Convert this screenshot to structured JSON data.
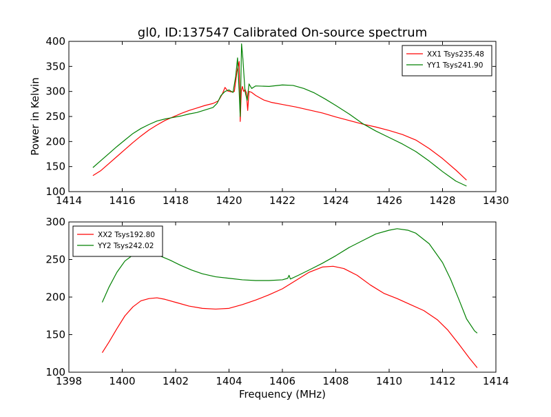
{
  "colors": {
    "red": "#ff0000",
    "green": "#008000",
    "axis": "#000000",
    "background": "#ffffff"
  },
  "chart_data": [
    {
      "type": "line",
      "title": "gl0, ID:137547 Calibrated On-source spectrum",
      "xlabel": "",
      "ylabel": "Power in Kelvin",
      "xlim": [
        1414,
        1430
      ],
      "ylim": [
        100,
        400
      ],
      "xticks": [
        1414,
        1416,
        1418,
        1420,
        1422,
        1424,
        1426,
        1428,
        1430
      ],
      "yticks": [
        100,
        150,
        200,
        250,
        300,
        350,
        400
      ],
      "grid": false,
      "legend_position": "upper right",
      "series": [
        {
          "name": "XX1 Tsys235.48",
          "color": "#ff0000",
          "points": [
            [
              1414.9,
              132
            ],
            [
              1415.2,
              142
            ],
            [
              1415.5,
              156
            ],
            [
              1415.8,
              170
            ],
            [
              1416.1,
              184
            ],
            [
              1416.4,
              198
            ],
            [
              1416.7,
              211
            ],
            [
              1417.0,
              223
            ],
            [
              1417.3,
              233
            ],
            [
              1417.6,
              242
            ],
            [
              1417.9,
              249
            ],
            [
              1418.2,
              256
            ],
            [
              1418.5,
              262
            ],
            [
              1418.8,
              267
            ],
            [
              1419.1,
              272
            ],
            [
              1419.4,
              276
            ],
            [
              1419.6,
              281
            ],
            [
              1419.75,
              295
            ],
            [
              1419.85,
              308
            ],
            [
              1419.95,
              301
            ],
            [
              1420.1,
              299
            ],
            [
              1420.2,
              300
            ],
            [
              1420.3,
              340
            ],
            [
              1420.38,
              360
            ],
            [
              1420.42,
              240
            ],
            [
              1420.46,
              300
            ],
            [
              1420.5,
              310
            ],
            [
              1420.55,
              300
            ],
            [
              1420.6,
              304
            ],
            [
              1420.65,
              297
            ],
            [
              1420.7,
              262
            ],
            [
              1420.75,
              300
            ],
            [
              1420.85,
              298
            ],
            [
              1421.0,
              292
            ],
            [
              1421.3,
              283
            ],
            [
              1421.6,
              278
            ],
            [
              1422.0,
              274
            ],
            [
              1422.5,
              269
            ],
            [
              1423.0,
              263
            ],
            [
              1423.5,
              257
            ],
            [
              1424.0,
              249
            ],
            [
              1424.5,
              242
            ],
            [
              1425.0,
              235
            ],
            [
              1425.5,
              229
            ],
            [
              1426.0,
              222
            ],
            [
              1426.5,
              214
            ],
            [
              1427.0,
              203
            ],
            [
              1427.5,
              186
            ],
            [
              1428.0,
              166
            ],
            [
              1428.5,
              143
            ],
            [
              1428.9,
              123
            ]
          ]
        },
        {
          "name": "YY1 Tsys241.90",
          "color": "#008000",
          "points": [
            [
              1414.9,
              148
            ],
            [
              1415.2,
              162
            ],
            [
              1415.5,
              176
            ],
            [
              1415.8,
              190
            ],
            [
              1416.1,
              203
            ],
            [
              1416.4,
              216
            ],
            [
              1416.7,
              226
            ],
            [
              1417.0,
              234
            ],
            [
              1417.3,
              241
            ],
            [
              1417.6,
              245
            ],
            [
              1417.9,
              248
            ],
            [
              1418.2,
              251
            ],
            [
              1418.5,
              255
            ],
            [
              1418.8,
              258
            ],
            [
              1419.1,
              263
            ],
            [
              1419.4,
              268
            ],
            [
              1419.55,
              276
            ],
            [
              1419.7,
              292
            ],
            [
              1419.85,
              300
            ],
            [
              1420.0,
              303
            ],
            [
              1420.15,
              298
            ],
            [
              1420.25,
              330
            ],
            [
              1420.32,
              367
            ],
            [
              1420.38,
              300
            ],
            [
              1420.42,
              250
            ],
            [
              1420.47,
              395
            ],
            [
              1420.52,
              365
            ],
            [
              1420.6,
              300
            ],
            [
              1420.68,
              282
            ],
            [
              1420.75,
              315
            ],
            [
              1420.85,
              306
            ],
            [
              1421.0,
              311
            ],
            [
              1421.5,
              310
            ],
            [
              1422.0,
              313
            ],
            [
              1422.4,
              312
            ],
            [
              1422.8,
              306
            ],
            [
              1423.2,
              297
            ],
            [
              1423.6,
              285
            ],
            [
              1424.0,
              272
            ],
            [
              1424.5,
              255
            ],
            [
              1425.0,
              236
            ],
            [
              1425.5,
              221
            ],
            [
              1426.0,
              208
            ],
            [
              1426.5,
              195
            ],
            [
              1427.0,
              180
            ],
            [
              1427.5,
              161
            ],
            [
              1428.0,
              140
            ],
            [
              1428.5,
              121
            ],
            [
              1428.9,
              111
            ]
          ]
        }
      ]
    },
    {
      "type": "line",
      "title": "",
      "xlabel": "Frequency (MHz)",
      "ylabel": "",
      "xlim": [
        1398,
        1414
      ],
      "ylim": [
        100,
        300
      ],
      "xticks": [
        1398,
        1400,
        1402,
        1404,
        1406,
        1408,
        1410,
        1412,
        1414
      ],
      "yticks": [
        100,
        150,
        200,
        250,
        300
      ],
      "grid": false,
      "legend_position": "upper left",
      "series": [
        {
          "name": "XX2 Tsys192.80",
          "color": "#ff0000",
          "points": [
            [
              1399.25,
              126
            ],
            [
              1399.5,
              140
            ],
            [
              1399.8,
              158
            ],
            [
              1400.1,
              175
            ],
            [
              1400.4,
              187
            ],
            [
              1400.7,
              195
            ],
            [
              1401.0,
              198
            ],
            [
              1401.3,
              199
            ],
            [
              1401.6,
              197
            ],
            [
              1402.0,
              193
            ],
            [
              1402.5,
              188
            ],
            [
              1403.0,
              185
            ],
            [
              1403.5,
              184
            ],
            [
              1404.0,
              185
            ],
            [
              1404.5,
              190
            ],
            [
              1405.0,
              196
            ],
            [
              1405.5,
              203
            ],
            [
              1406.0,
              211
            ],
            [
              1406.5,
              222
            ],
            [
              1407.0,
              233
            ],
            [
              1407.5,
              240
            ],
            [
              1407.9,
              241
            ],
            [
              1408.3,
              238
            ],
            [
              1408.8,
              229
            ],
            [
              1409.3,
              216
            ],
            [
              1409.8,
              205
            ],
            [
              1410.3,
              198
            ],
            [
              1410.8,
              190
            ],
            [
              1411.3,
              182
            ],
            [
              1411.8,
              170
            ],
            [
              1412.2,
              156
            ],
            [
              1412.6,
              138
            ],
            [
              1413.0,
              119
            ],
            [
              1413.3,
              106
            ]
          ]
        },
        {
          "name": "YY2 Tsys242.02",
          "color": "#008000",
          "points": [
            [
              1399.25,
              193
            ],
            [
              1399.5,
              213
            ],
            [
              1399.8,
              233
            ],
            [
              1400.1,
              248
            ],
            [
              1400.4,
              256
            ],
            [
              1400.7,
              260
            ],
            [
              1401.0,
              259
            ],
            [
              1401.4,
              255
            ],
            [
              1401.8,
              249
            ],
            [
              1402.2,
              242
            ],
            [
              1402.6,
              236
            ],
            [
              1403.0,
              231
            ],
            [
              1403.5,
              227
            ],
            [
              1404.0,
              225
            ],
            [
              1404.5,
              223
            ],
            [
              1405.0,
              222
            ],
            [
              1405.5,
              222
            ],
            [
              1406.0,
              223
            ],
            [
              1406.2,
              225
            ],
            [
              1406.25,
              229
            ],
            [
              1406.3,
              224
            ],
            [
              1406.6,
              229
            ],
            [
              1407.0,
              236
            ],
            [
              1407.5,
              245
            ],
            [
              1408.0,
              255
            ],
            [
              1408.5,
              266
            ],
            [
              1409.0,
              275
            ],
            [
              1409.5,
              284
            ],
            [
              1410.0,
              289
            ],
            [
              1410.3,
              291
            ],
            [
              1410.7,
              289
            ],
            [
              1411.0,
              285
            ],
            [
              1411.5,
              271
            ],
            [
              1412.0,
              246
            ],
            [
              1412.3,
              224
            ],
            [
              1412.6,
              198
            ],
            [
              1412.9,
              171
            ],
            [
              1413.2,
              155
            ],
            [
              1413.3,
              152
            ]
          ]
        }
      ]
    }
  ]
}
